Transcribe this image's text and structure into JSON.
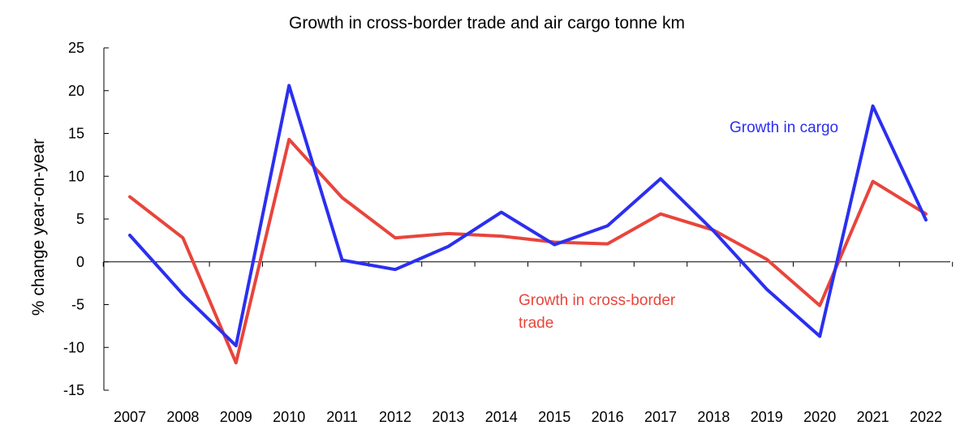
{
  "chart_data": {
    "type": "line",
    "title": "Growth in cross-border trade and air cargo tonne km",
    "xlabel": "",
    "ylabel": "% change year-on-year",
    "categories": [
      "2007",
      "2008",
      "2009",
      "2010",
      "2011",
      "2012",
      "2013",
      "2014",
      "2015",
      "2016",
      "2017",
      "2018",
      "2019",
      "2020",
      "2021",
      "2022"
    ],
    "y_ticks": [
      25,
      20,
      15,
      10,
      5,
      0,
      -5,
      -10,
      -15
    ],
    "ylim": [
      -15,
      25
    ],
    "grid": false,
    "legend": "none (series labelled inline)",
    "series": [
      {
        "name": "Growth in cargo",
        "color": "#2b2ff0",
        "values": [
          3.1,
          -3.8,
          -9.8,
          20.6,
          0.2,
          -0.9,
          1.8,
          5.8,
          2.0,
          4.2,
          9.7,
          3.6,
          -3.2,
          -8.7,
          18.2,
          4.9
        ]
      },
      {
        "name": "Growth in cross-border trade",
        "color": "#e8453c",
        "values": [
          7.6,
          2.8,
          -11.8,
          14.3,
          7.5,
          2.8,
          3.3,
          3.0,
          2.3,
          2.1,
          5.6,
          3.7,
          0.3,
          -5.1,
          9.4,
          5.6
        ]
      }
    ],
    "annotations": [
      {
        "text": "Growth in cargo",
        "color": "#2b2ff0"
      },
      {
        "text_lines": [
          "Growth in cross-border",
          "trade"
        ],
        "color": "#e8453c"
      }
    ]
  }
}
